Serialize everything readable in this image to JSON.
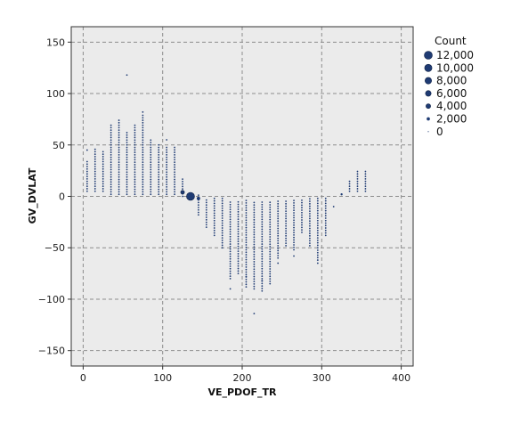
{
  "chart_data": {
    "type": "scatter",
    "xlabel": "VE_PDOF_TR",
    "ylabel": "GV_DVLAT",
    "xlim": [
      -15,
      415
    ],
    "ylim": [
      -165,
      165
    ],
    "x_ticks": [
      0,
      100,
      200,
      300,
      400
    ],
    "y_ticks": [
      -150,
      -100,
      -50,
      0,
      50,
      100,
      150
    ],
    "x_tick_labels": [
      "0",
      "100",
      "200",
      "300",
      "400"
    ],
    "y_tick_labels": [
      "−150",
      "−100",
      "−50",
      "0",
      "50",
      "100",
      "150"
    ],
    "grid": true,
    "legend_position": "right",
    "point_color": "#1f3b73",
    "plot_background": "#ebebeb",
    "legend": {
      "title": "Count",
      "entries": [
        {
          "label": "12,000",
          "value": 12000
        },
        {
          "label": "10,000",
          "value": 10000
        },
        {
          "label": "8,000",
          "value": 8000
        },
        {
          "label": "6,000",
          "value": 6000
        },
        {
          "label": "4,000",
          "value": 4000
        },
        {
          "label": "2,000",
          "value": 2000
        },
        {
          "label": "0",
          "value": 0
        }
      ]
    },
    "columns": [
      {
        "x": 5,
        "y_min": 5,
        "y_max": 35
      },
      {
        "x": 15,
        "y_min": 5,
        "y_max": 48
      },
      {
        "x": 25,
        "y_min": 5,
        "y_max": 44
      },
      {
        "x": 35,
        "y_min": 2,
        "y_max": 70
      },
      {
        "x": 45,
        "y_min": 2,
        "y_max": 74
      },
      {
        "x": 55,
        "y_min": 2,
        "y_max": 63
      },
      {
        "x": 65,
        "y_min": 2,
        "y_max": 70
      },
      {
        "x": 75,
        "y_min": 2,
        "y_max": 80
      },
      {
        "x": 85,
        "y_min": 2,
        "y_max": 55
      },
      {
        "x": 95,
        "y_min": 2,
        "y_max": 52
      },
      {
        "x": 105,
        "y_min": 2,
        "y_max": 48
      },
      {
        "x": 115,
        "y_min": 2,
        "y_max": 48
      },
      {
        "x": 125,
        "y_min": 0,
        "y_max": 18
      },
      {
        "x": 145,
        "y_min": -18,
        "y_max": 2
      },
      {
        "x": 155,
        "y_min": -30,
        "y_max": -2
      },
      {
        "x": 165,
        "y_min": -38,
        "y_max": -2
      },
      {
        "x": 175,
        "y_min": -50,
        "y_max": -2
      },
      {
        "x": 185,
        "y_min": -80,
        "y_max": -4
      },
      {
        "x": 195,
        "y_min": -75,
        "y_max": -4
      },
      {
        "x": 205,
        "y_min": -88,
        "y_max": -4
      },
      {
        "x": 215,
        "y_min": -90,
        "y_max": -4
      },
      {
        "x": 225,
        "y_min": -92,
        "y_max": -4
      },
      {
        "x": 235,
        "y_min": -85,
        "y_max": -4
      },
      {
        "x": 245,
        "y_min": -60,
        "y_max": -4
      },
      {
        "x": 255,
        "y_min": -48,
        "y_max": -4
      },
      {
        "x": 265,
        "y_min": -52,
        "y_max": -2
      },
      {
        "x": 275,
        "y_min": -35,
        "y_max": -2
      },
      {
        "x": 285,
        "y_min": -48,
        "y_max": -2
      },
      {
        "x": 295,
        "y_min": -62,
        "y_max": -2
      },
      {
        "x": 305,
        "y_min": -38,
        "y_max": -2
      },
      {
        "x": 335,
        "y_min": 5,
        "y_max": 15
      },
      {
        "x": 345,
        "y_min": 5,
        "y_max": 25
      },
      {
        "x": 355,
        "y_min": 5,
        "y_max": 25
      }
    ],
    "points": [
      {
        "x": 135,
        "y": 0,
        "count": 12000
      },
      {
        "x": 125,
        "y": 4,
        "count": 2600
      },
      {
        "x": 145,
        "y": -2,
        "count": 2200
      },
      {
        "x": 55,
        "y": 118,
        "count": 50
      },
      {
        "x": 75,
        "y": 82,
        "count": 50
      },
      {
        "x": 215,
        "y": -114,
        "count": 50
      },
      {
        "x": 225,
        "y": -82,
        "count": 50
      },
      {
        "x": 5,
        "y": 45,
        "count": 50
      },
      {
        "x": 105,
        "y": 55,
        "count": 50
      },
      {
        "x": 205,
        "y": -78,
        "count": 50
      },
      {
        "x": 185,
        "y": -90,
        "count": 50
      },
      {
        "x": 325,
        "y": 2,
        "count": 800
      },
      {
        "x": 315,
        "y": -10,
        "count": 50
      },
      {
        "x": 295,
        "y": -65,
        "count": 50
      },
      {
        "x": 265,
        "y": -58,
        "count": 50
      },
      {
        "x": 245,
        "y": -65,
        "count": 50
      }
    ]
  }
}
